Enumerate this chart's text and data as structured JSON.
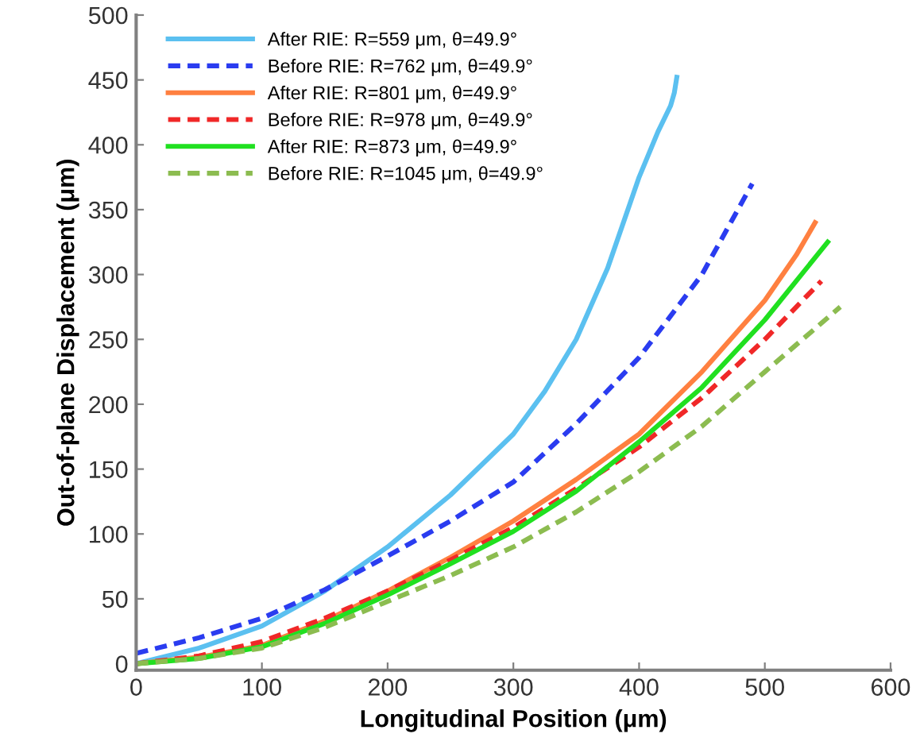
{
  "chart_data": {
    "type": "line",
    "xlabel": "Longitudinal Position (μm)",
    "ylabel": "Out-of-plane Displacement (μm)",
    "xlim": [
      0,
      600
    ],
    "ylim": [
      -5,
      500
    ],
    "xticks": [
      0,
      100,
      200,
      300,
      400,
      500,
      600
    ],
    "yticks": [
      0,
      50,
      100,
      150,
      200,
      250,
      300,
      350,
      400,
      450,
      500
    ],
    "grid": false,
    "legend": "top left",
    "marker": "none",
    "series": [
      {
        "name": "After RIE: R=559 μm, θ=49.9°",
        "color": "#5bc0f0",
        "line_style": "solid",
        "x": [
          0,
          50,
          100,
          150,
          200,
          250,
          300,
          325,
          350,
          375,
          400,
          415,
          425,
          428,
          430
        ],
        "values": [
          0,
          12,
          29,
          56,
          90,
          130,
          177,
          210,
          250,
          305,
          375,
          410,
          430,
          440,
          452
        ]
      },
      {
        "name": "Before RIE: R=762 μm, θ=49.9°",
        "color": "#2a3cf0",
        "line_style": "dashed",
        "x": [
          0,
          50,
          100,
          150,
          200,
          250,
          300,
          350,
          400,
          450,
          490
        ],
        "values": [
          8,
          20,
          35,
          57,
          83,
          110,
          140,
          185,
          236,
          300,
          370
        ]
      },
      {
        "name": "After RIE: R=801 μm, θ=49.9°",
        "color": "#ff8040",
        "line_style": "solid",
        "x": [
          0,
          50,
          100,
          150,
          200,
          250,
          300,
          350,
          400,
          450,
          500,
          525,
          540
        ],
        "values": [
          0,
          5,
          14,
          33,
          56,
          82,
          110,
          142,
          177,
          225,
          280,
          315,
          340
        ]
      },
      {
        "name": "Before RIE: R=978 μm, θ=49.9°",
        "color": "#f02828",
        "line_style": "dashed",
        "x": [
          0,
          50,
          100,
          150,
          200,
          250,
          300,
          350,
          400,
          450,
          500,
          545
        ],
        "values": [
          0,
          6,
          17,
          35,
          56,
          80,
          105,
          135,
          167,
          205,
          250,
          295
        ]
      },
      {
        "name": "After RIE: R=873 μm, θ=49.9°",
        "color": "#20e020",
        "line_style": "solid",
        "x": [
          0,
          50,
          100,
          150,
          200,
          250,
          300,
          350,
          400,
          450,
          500,
          550
        ],
        "values": [
          0,
          4,
          13,
          31,
          53,
          77,
          102,
          133,
          171,
          213,
          265,
          325
        ]
      },
      {
        "name": "Before RIE: R=1045 μm, θ=49.9°",
        "color": "#8cbc50",
        "line_style": "dashed",
        "x": [
          0,
          50,
          100,
          150,
          200,
          250,
          300,
          350,
          400,
          450,
          500,
          560
        ],
        "values": [
          0,
          4,
          12,
          28,
          48,
          68,
          90,
          117,
          148,
          183,
          225,
          275
        ]
      }
    ]
  }
}
